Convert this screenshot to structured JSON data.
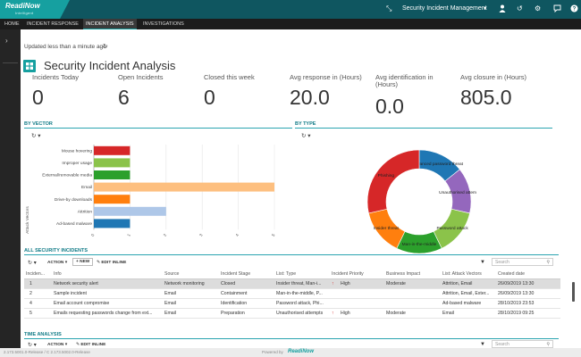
{
  "app": {
    "logo": "ReadiNow",
    "logo_sub": "Intelligent",
    "title": "Security Incident Management"
  },
  "colors": {
    "brand": "#16a0a0",
    "header": "#0f5660",
    "nav": "#1c1c1c"
  },
  "nav": {
    "tabs": [
      "HOME",
      "INCIDENT RESPONSE",
      "INCIDENT ANALYSIS",
      "INVESTIGATIONS"
    ],
    "active": "INCIDENT ANALYSIS"
  },
  "page": {
    "updated": "Updated less than a minute ago",
    "title": "Security Incident Analysis"
  },
  "kpis": [
    {
      "label": "Incidents Today",
      "value": "0"
    },
    {
      "label": "Open Incidents",
      "value": "6"
    },
    {
      "label": "Closed this week",
      "value": "0"
    },
    {
      "label": "Avg response in (Hours)",
      "value": "20.0"
    },
    {
      "label": "Avg identification in (Hours)",
      "value": "0.0"
    },
    {
      "label": "Avg closure in (Hours)",
      "value": "805.0"
    }
  ],
  "sections": {
    "by_vector": "BY VECTOR",
    "by_type": "BY TYPE",
    "all_incidents": "ALL SECURITY INCIDENTS",
    "time_analysis": "TIME ANALYSIS"
  },
  "chart_data": [
    {
      "type": "bar",
      "orientation": "horizontal",
      "ylabel": "Attack Vectors",
      "categories": [
        "Mouse hovering",
        "Improper usage",
        "External/removable media",
        "Email",
        "Drive-by downloads",
        "Attrition",
        "Ad-based malware"
      ],
      "values": [
        1,
        1,
        1,
        5,
        1,
        2,
        1
      ],
      "colors": [
        "#d62728",
        "#8bc34a",
        "#2ca02c",
        "#fdbf7f",
        "#ff7f0e",
        "#aec7e8",
        "#1f77b4"
      ],
      "xlim": [
        0,
        5
      ],
      "xticks": [
        "0",
        "1",
        "2",
        "3",
        "4",
        "5"
      ]
    },
    {
      "type": "pie",
      "donut": true,
      "labels": [
        "Advanced password threat",
        "Unauthorised attempts",
        "Password attack",
        "Man-in-the-middle",
        "Insider threat",
        "Phishing"
      ],
      "values": [
        1,
        1,
        1,
        1,
        1,
        2
      ],
      "colors": [
        "#1f77b4",
        "#9467bd",
        "#8bc34a",
        "#2ca02c",
        "#ff7f0e",
        "#d62728"
      ]
    }
  ],
  "toolbar": {
    "action": "ACTION",
    "new": "+ NEW",
    "edit_inline": "EDIT INLINE",
    "search_placeholder": "Search"
  },
  "table": {
    "columns": [
      "Inciden...",
      "Info",
      "Source",
      "Incident Stage",
      "List: Type",
      "Incident Priority",
      "Business Impact",
      "List: Attack Vectors",
      "Created date"
    ],
    "rows": [
      [
        "1",
        "Network security alert",
        "Network monitoring",
        "Closed",
        "Insider threat, Man-i...",
        "High",
        "Moderate",
        "Attrition, Email",
        "26/09/2019 13:30"
      ],
      [
        "2",
        "Sample incident",
        "Email",
        "Containment",
        "Man-in-the-middle, P...",
        "",
        "",
        "Attrition, Email, Exter...",
        "26/09/2019 13:30"
      ],
      [
        "4",
        "Email account compromise",
        "Email",
        "Identification",
        "Password attack, Phi...",
        "",
        "",
        "Ad-based malware",
        "28/10/2019 23:53"
      ],
      [
        "5",
        "Emails requesting passwords change from ext...",
        "Email",
        "Preparation",
        "Unauthorised attempts",
        "High",
        "Moderate",
        "Email",
        "28/10/2019 09:25"
      ]
    ]
  },
  "footer": {
    "version": "2.173.5001.0-Release / C 2.173.5002.0-Release",
    "powered": "Powered by",
    "brand": "ReadiNow"
  }
}
